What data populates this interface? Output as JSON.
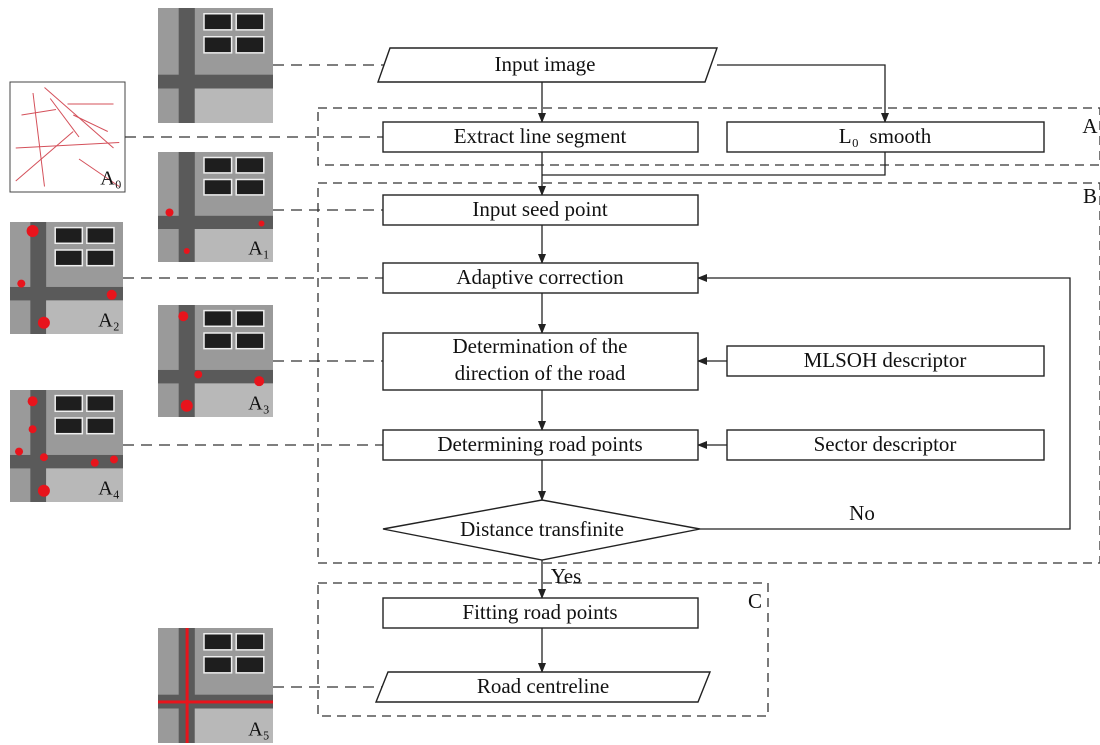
{
  "nodes": [
    {
      "label": "Input image"
    },
    {
      "label": "Extract line segment"
    },
    {
      "label": "L₀  smooth"
    },
    {
      "label": "Input seed point"
    },
    {
      "label": "Adaptive correction"
    },
    {
      "lines": [
        "Determination of the",
        "direction of the road"
      ]
    },
    {
      "label": "MLSOH descriptor"
    },
    {
      "label": "Determining road points"
    },
    {
      "label": "Sector descriptor"
    },
    {
      "label": "Distance transfinite"
    },
    {
      "label": "Fitting road points"
    },
    {
      "label": "Road centreline"
    }
  ],
  "groups": [
    "A",
    "B",
    "C"
  ],
  "edge_labels": {
    "no": "No",
    "yes": "Yes"
  },
  "thumbnails": [
    "A₀",
    "A₁",
    "A₂",
    "A₃",
    "A₄",
    "A₅"
  ]
}
